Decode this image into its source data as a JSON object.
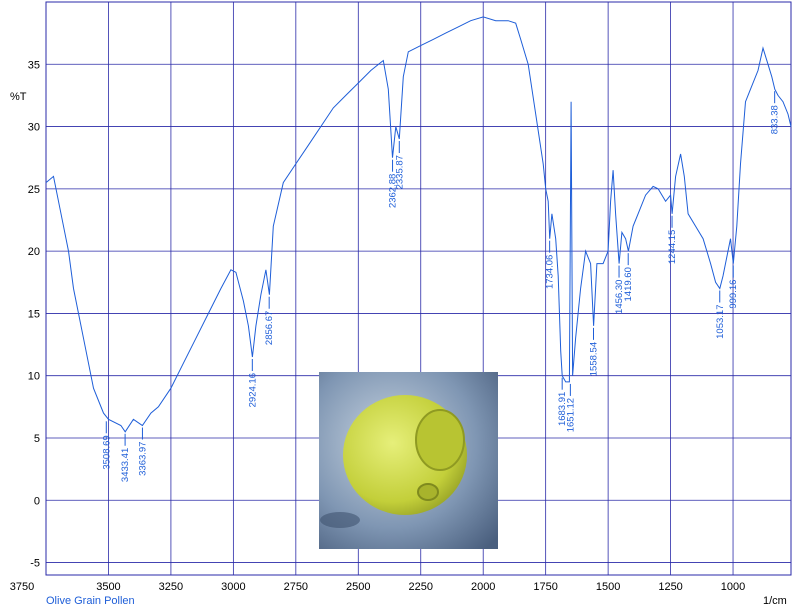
{
  "chart_data": {
    "type": "line",
    "title": "Olive Grain Pollen",
    "x_label": "1/cm",
    "y_label": "%T",
    "xlim": [
      3750,
      768
    ],
    "ylim": [
      -6,
      40
    ],
    "xticks": [
      3750,
      3500,
      3250,
      3000,
      2750,
      2500,
      2250,
      2000,
      1750,
      1500,
      1250,
      1000
    ],
    "yticks": [
      -5,
      0,
      5,
      10,
      15,
      20,
      25,
      30,
      35
    ],
    "grid": true,
    "x": [
      3750,
      3720,
      3700,
      3680,
      3660,
      3640,
      3600,
      3560,
      3520,
      3500,
      3450,
      3433,
      3400,
      3364,
      3330,
      3300,
      3250,
      3200,
      3150,
      3100,
      3050,
      3010,
      2990,
      2960,
      2940,
      2924,
      2910,
      2890,
      2870,
      2856,
      2840,
      2800,
      2750,
      2700,
      2650,
      2600,
      2550,
      2500,
      2450,
      2400,
      2380,
      2363,
      2350,
      2336,
      2320,
      2300,
      2250,
      2200,
      2150,
      2100,
      2050,
      2000,
      1950,
      1900,
      1870,
      1850,
      1820,
      1790,
      1760,
      1750,
      1740,
      1734,
      1725,
      1710,
      1700,
      1690,
      1684,
      1670,
      1655,
      1648,
      1642,
      1630,
      1610,
      1590,
      1570,
      1558,
      1545,
      1520,
      1500,
      1490,
      1480,
      1470,
      1456,
      1445,
      1430,
      1419,
      1400,
      1380,
      1350,
      1320,
      1300,
      1270,
      1250,
      1244,
      1230,
      1210,
      1195,
      1180,
      1150,
      1120,
      1090,
      1070,
      1053,
      1040,
      1020,
      1010,
      999,
      985,
      970,
      950,
      930,
      900,
      880,
      860,
      845,
      833,
      820,
      800,
      780,
      768
    ],
    "series": [
      {
        "color": "#1e5ed8",
        "values": [
          25.5,
          26,
          24,
          22,
          20,
          17,
          13,
          9,
          7,
          6.5,
          6,
          5.5,
          6.5,
          6,
          7,
          7.5,
          9,
          11,
          13,
          15,
          17,
          18.5,
          18.3,
          16,
          14,
          11.5,
          14,
          16.5,
          18.5,
          16.5,
          22,
          25.5,
          27,
          28.5,
          30,
          31.5,
          32.5,
          33.5,
          34.5,
          35.3,
          33,
          27.5,
          30,
          29,
          34,
          36,
          36.5,
          37,
          37.5,
          38,
          38.5,
          38.8,
          38.5,
          38.5,
          38.3,
          37,
          35,
          31,
          27,
          25,
          24,
          21,
          23,
          21,
          18,
          12,
          10,
          9.5,
          9.5,
          32,
          10,
          13,
          17,
          20,
          19,
          14,
          19,
          19,
          20,
          24,
          26.5,
          23,
          19,
          21.5,
          21,
          20,
          22,
          23,
          24.5,
          25.2,
          25,
          24,
          24.5,
          23,
          26,
          27.8,
          26,
          23,
          22,
          21,
          19,
          17.5,
          17,
          18,
          20,
          21,
          19,
          22,
          27,
          32,
          33,
          34.5,
          36.3,
          35,
          34,
          33,
          32.5,
          32,
          31,
          30
        ]
      }
    ],
    "peaks": [
      {
        "x": 3508.69,
        "label": "3508.69",
        "y": 6.5
      },
      {
        "x": 3433.41,
        "label": "3433.41",
        "y": 5.5
      },
      {
        "x": 3363.97,
        "label": "3363.97",
        "y": 6
      },
      {
        "x": 2924.16,
        "label": "2924.16",
        "y": 11.5
      },
      {
        "x": 2856.67,
        "label": "2856.67",
        "y": 16.5
      },
      {
        "x": 2362.88,
        "label": "2362.88",
        "y": 27.5
      },
      {
        "x": 2335.87,
        "label": "2335.87",
        "y": 29
      },
      {
        "x": 1734.06,
        "label": "1734.06",
        "y": 21
      },
      {
        "x": 1683.91,
        "label": "1683.91",
        "y": 10
      },
      {
        "x": 1651.12,
        "label": "1651.12",
        "y": 9.5
      },
      {
        "x": 1558.54,
        "label": "1558.54",
        "y": 14
      },
      {
        "x": 1456.3,
        "label": "1456.30",
        "y": 19
      },
      {
        "x": 1419.6,
        "label": "1419.60",
        "y": 20
      },
      {
        "x": 1244.15,
        "label": "1244.15",
        "y": 23
      },
      {
        "x": 1053.17,
        "label": "1053.17",
        "y": 17
      },
      {
        "x": 999.16,
        "label": "999.16",
        "y": 19
      },
      {
        "x": 833.38,
        "label": "833.38",
        "y": 33
      }
    ]
  }
}
